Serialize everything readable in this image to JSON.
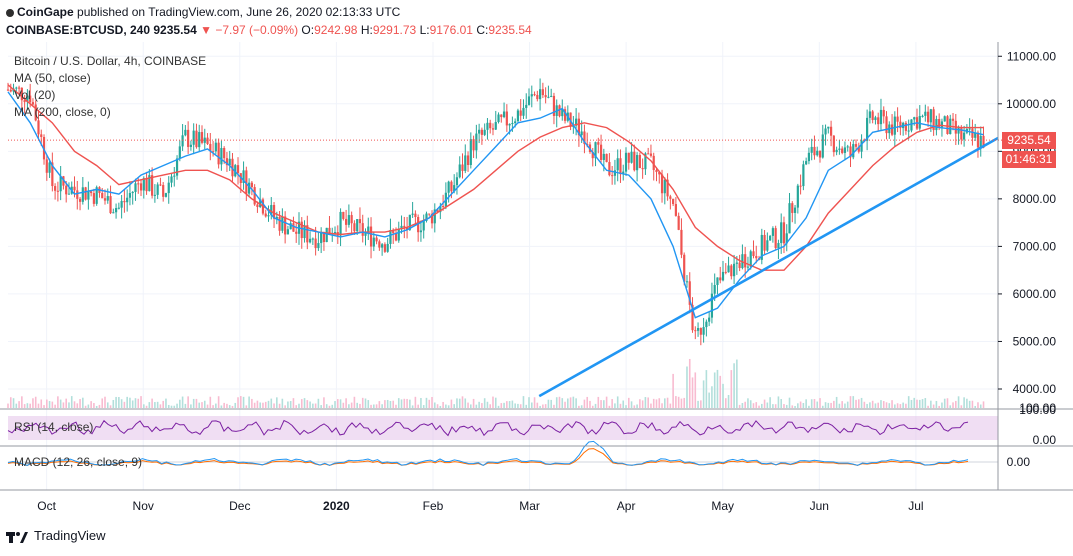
{
  "header": {
    "publisher": "CoinGape",
    "published_text": "published on TradingView.com, June 26, 2020 02:13:33 UTC",
    "symbol_line": "COINBASE:BTCUSD, 240",
    "last_price": "9235.54",
    "change": "−7.97 (−0.09%)",
    "o_label": "O:",
    "o_value": "9242.98",
    "h_label": "H:",
    "h_value": "9291.73",
    "l_label": "L:",
    "l_value": "9176.01",
    "c_label": "C:",
    "c_value": "9235.54"
  },
  "legend": {
    "title": "Bitcoin / U.S. Dollar, 4h, COINBASE",
    "ma50": "MA (50, close)",
    "vol": "Vol (20)",
    "ma200": "MA (200, close, 0)",
    "rsi": "RSI (14, close)",
    "macd": "MACD (12, 26, close, 9)"
  },
  "price_tag": {
    "price": "9235.54",
    "countdown": "01:46:31"
  },
  "footer": {
    "brand": "TradingView"
  },
  "colors": {
    "candle_up": "#26a69a",
    "candle_down": "#ef5350",
    "ma50": "#2196f3",
    "ma200": "#ef5350",
    "trendline": "#2196f3",
    "rsi": "#7b1fa2",
    "rsi_band": "#e1bee7",
    "macd": "#2196f3",
    "signal": "#ff6d00"
  },
  "chart_data": [
    {
      "type": "candlestick",
      "title": "Bitcoin / U.S. Dollar, 4h, COINBASE",
      "x_ticks": [
        "Oct",
        "Nov",
        "Dec",
        "2020",
        "Feb",
        "Mar",
        "Apr",
        "May",
        "Jun",
        "Jul"
      ],
      "y_ticks": [
        "11000.00",
        "10000.00",
        "9000.00",
        "8000.00",
        "7000.00",
        "6000.00",
        "5000.00",
        "4000.00"
      ],
      "ylim": [
        3600,
        11300
      ],
      "x_months": [
        9.6,
        10,
        11,
        12,
        13,
        14,
        15,
        16,
        17,
        18,
        19,
        19.85
      ],
      "price_close": [
        10300,
        10200,
        8300,
        8200,
        8100,
        7800,
        8400,
        8050,
        9300,
        9100,
        8800,
        8200,
        7600,
        7300,
        7200,
        7500,
        7300,
        7100,
        7400,
        7600,
        8200,
        9200,
        9500,
        9800,
        10300,
        9700,
        9400,
        8600,
        8800,
        8700,
        7900,
        5000,
        6200,
        6700,
        7000,
        7300,
        8800,
        9300,
        8900,
        9700,
        9500,
        9700,
        9600,
        9300,
        9235
      ],
      "ma50": [
        10250,
        9600,
        8700,
        8100,
        8200,
        8100,
        8500,
        8700,
        8900,
        9050,
        8700,
        8200,
        7600,
        7400,
        7300,
        7200,
        7300,
        7200,
        7350,
        7600,
        8100,
        8600,
        9100,
        9600,
        9700,
        9900,
        9200,
        8600,
        8500,
        8000,
        7000,
        5500,
        5700,
        6300,
        6800,
        7000,
        7600,
        8600,
        8900,
        9400,
        9500,
        9600,
        9500,
        9450,
        9350
      ],
      "ma200": [
        10400,
        10000,
        9600,
        9000,
        8700,
        8300,
        8400,
        8500,
        8600,
        8600,
        8400,
        8000,
        7700,
        7500,
        7300,
        7250,
        7300,
        7300,
        7400,
        7600,
        7900,
        8200,
        8600,
        9000,
        9300,
        9500,
        9600,
        9500,
        9200,
        8800,
        8200,
        7400,
        7000,
        6700,
        6500,
        6500,
        7000,
        7700,
        8200,
        8700,
        9100,
        9400,
        9550,
        9500,
        9500
      ],
      "trendline": [
        {
          "x": 15.1,
          "y": 3850
        },
        {
          "x": 19.85,
          "y": 9280
        }
      ],
      "last_price_line": 9235.54
    },
    {
      "type": "bar",
      "title": "Vol (20)",
      "y_ticks": [
        "100.00"
      ]
    },
    {
      "type": "line",
      "title": "RSI (14, close)",
      "y_ticks": [
        "100.00",
        "0.00"
      ]
    },
    {
      "type": "line",
      "title": "MACD (12, 26, close, 9)",
      "y_ticks": [
        "0.00"
      ]
    }
  ]
}
